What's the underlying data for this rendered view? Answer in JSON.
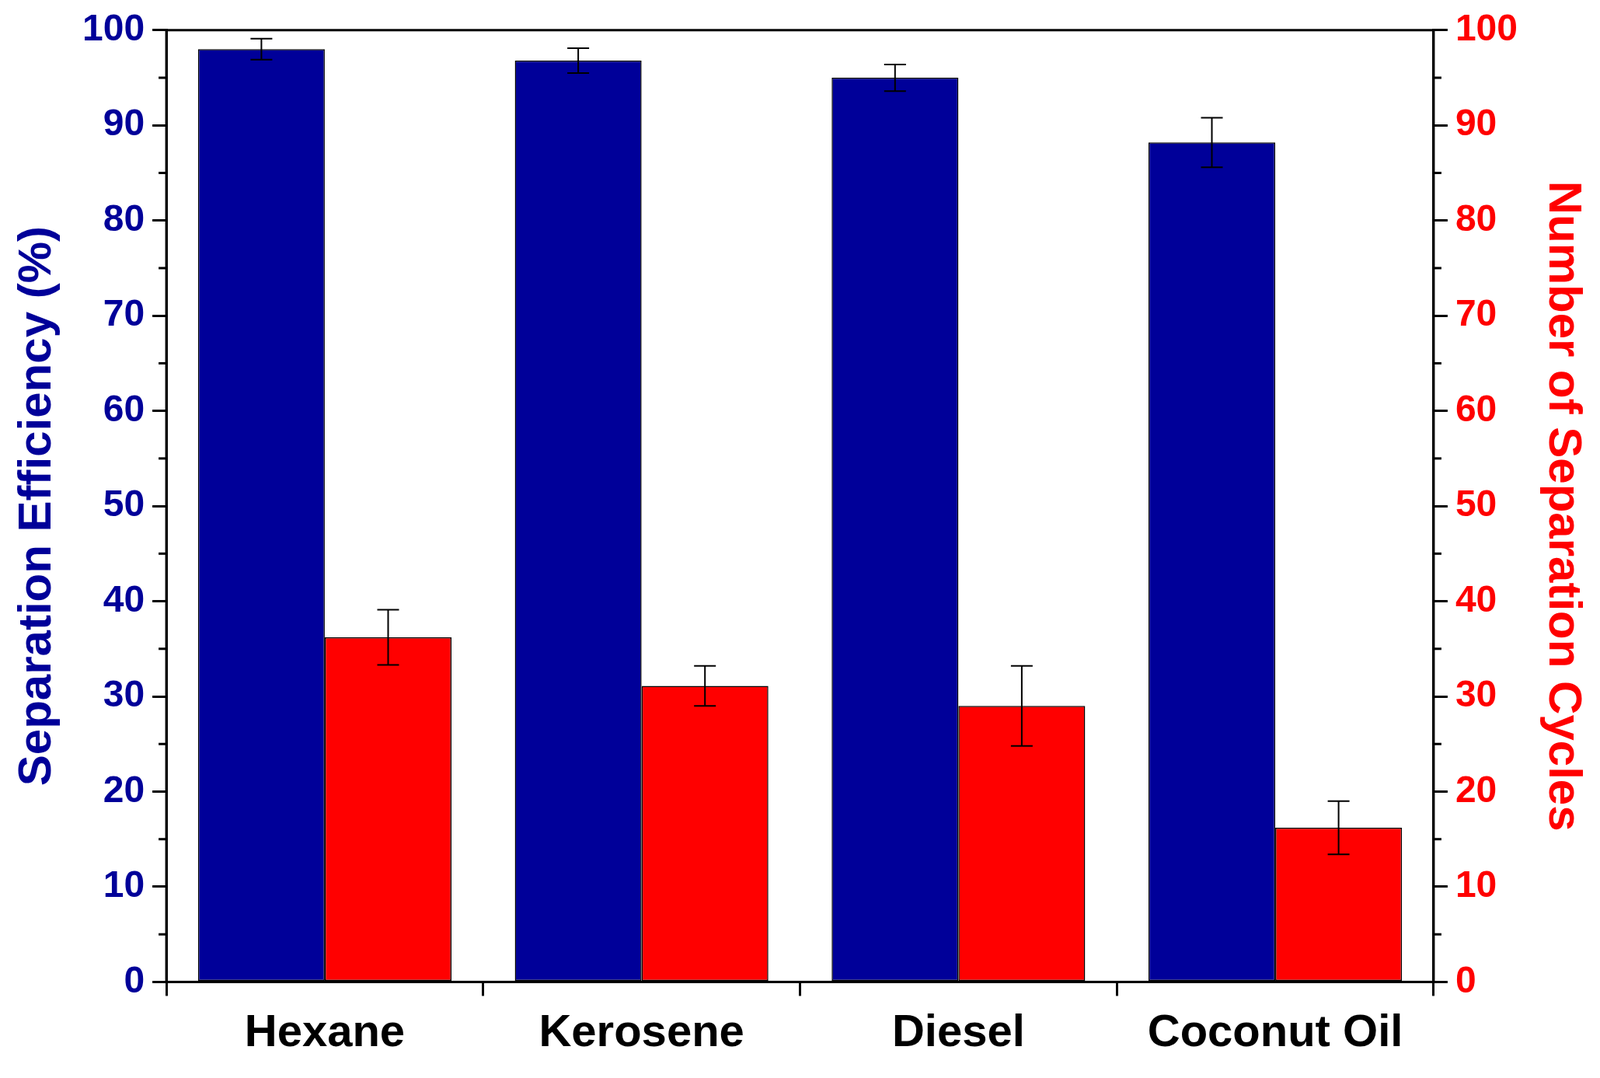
{
  "chart_data": {
    "type": "bar",
    "categories": [
      "Hexane",
      "Kerosene",
      "Diesel",
      "Coconut Oil"
    ],
    "ylabel": "Separation Efficiency (%)",
    "y2label": "Number of Separation Cycles",
    "ylim": [
      0,
      100
    ],
    "yticks": [
      0,
      10,
      20,
      30,
      40,
      50,
      60,
      70,
      80,
      90,
      100
    ],
    "y2lim": [
      0,
      100
    ],
    "y2ticks": [
      0,
      10,
      20,
      30,
      40,
      50,
      60,
      70,
      80,
      90,
      100
    ],
    "grid": false,
    "series": [
      {
        "color": "#000099",
        "values": [
          98.0,
          96.8,
          95.0,
          88.2
        ],
        "errors": [
          1.1,
          1.3,
          1.4,
          2.6
        ]
      },
      {
        "color": "#ff0000",
        "values": [
          36.2,
          31.1,
          29.0,
          16.2
        ],
        "errors": [
          2.9,
          2.1,
          4.2,
          2.8
        ],
        "axis": "y2"
      }
    ]
  }
}
